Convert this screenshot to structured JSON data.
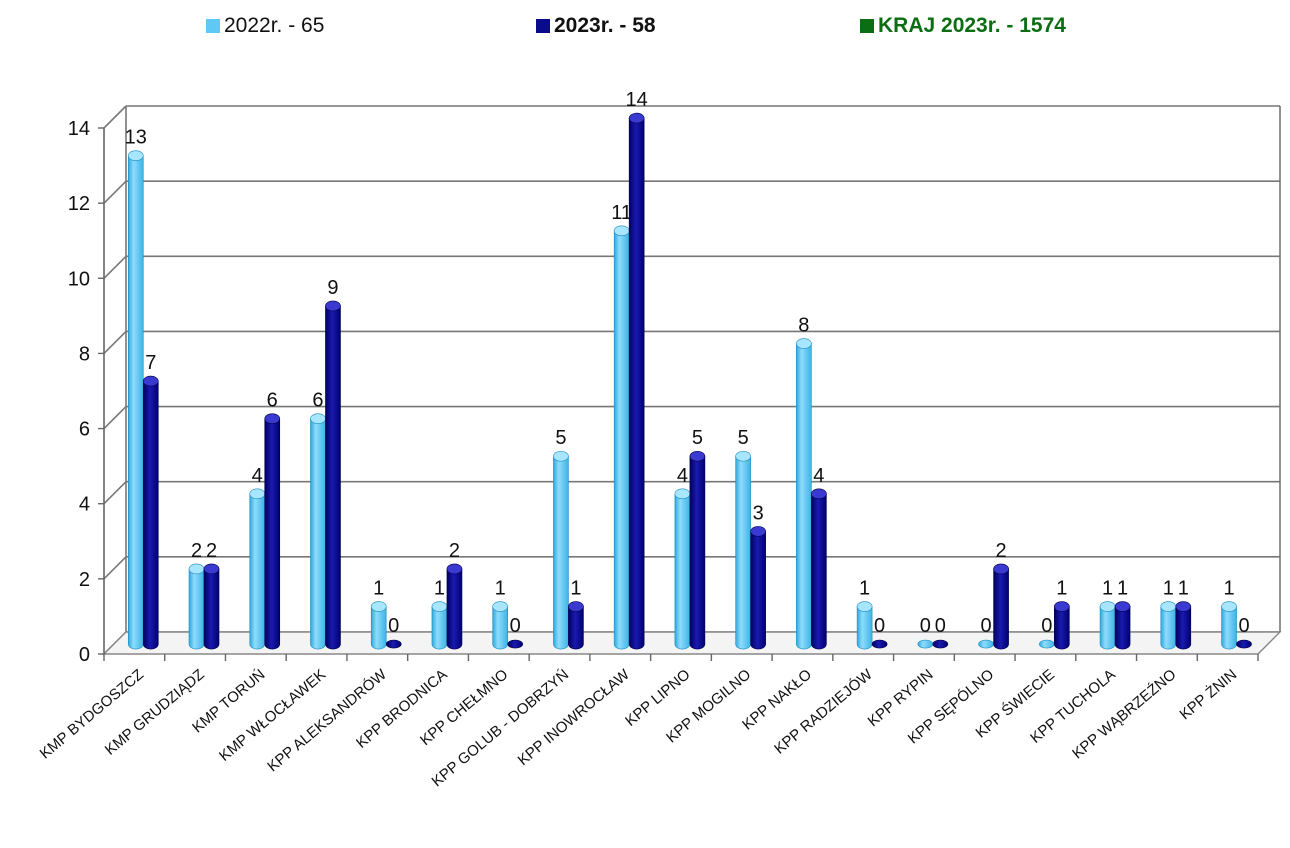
{
  "legend": [
    {
      "label": "2022r. - 65",
      "color": "#5fc8f4",
      "text_color": "#111111",
      "bold": false
    },
    {
      "label": "2023r. - 58",
      "color": "#0a0a8c",
      "text_color": "#111111",
      "bold": true
    },
    {
      "label": "KRAJ  2023r. - 1574",
      "color": "#0b6e12",
      "text_color": "#0b6e12",
      "bold": true
    }
  ],
  "chart_data": {
    "type": "bar",
    "title": "",
    "xlabel": "",
    "ylabel": "",
    "ylim": [
      0,
      14
    ],
    "yticks": [
      0,
      2,
      4,
      6,
      8,
      10,
      12,
      14
    ],
    "grid": true,
    "legend_position": "top",
    "categories": [
      "KMP BYDGOSZCZ",
      "KMP GRUDZIĄDZ",
      "KMP TORUŃ",
      "KMP WŁOCŁAWEK",
      "KPP ALEKSANDRÓW",
      "KPP BRODNICA",
      "KPP CHEŁMNO",
      "KPP GOLUB - DOBRZYŃ",
      "KPP INOWROCŁAW",
      "KPP LIPNO",
      "KPP MOGILNO",
      "KPP NAKŁO",
      "KPP RADZIEJÓW",
      "KPP RYPIN",
      "KPP SĘPÓLNO",
      "KPP ŚWIECIE",
      "KPP TUCHOLA",
      "KPP WĄBRZEŹNO",
      "KPP ŻNIN"
    ],
    "series": [
      {
        "name": "2022r. - 65",
        "color": "#5fc8f4",
        "values": [
          13,
          2,
          4,
          6,
          1,
          1,
          1,
          5,
          11,
          4,
          5,
          8,
          1,
          0,
          0,
          0,
          1,
          1,
          1
        ]
      },
      {
        "name": "2023r. - 58",
        "color": "#0a0a8c",
        "values": [
          7,
          2,
          6,
          9,
          0,
          2,
          0,
          1,
          14,
          5,
          3,
          4,
          0,
          0,
          2,
          1,
          1,
          1,
          0
        ]
      }
    ]
  }
}
